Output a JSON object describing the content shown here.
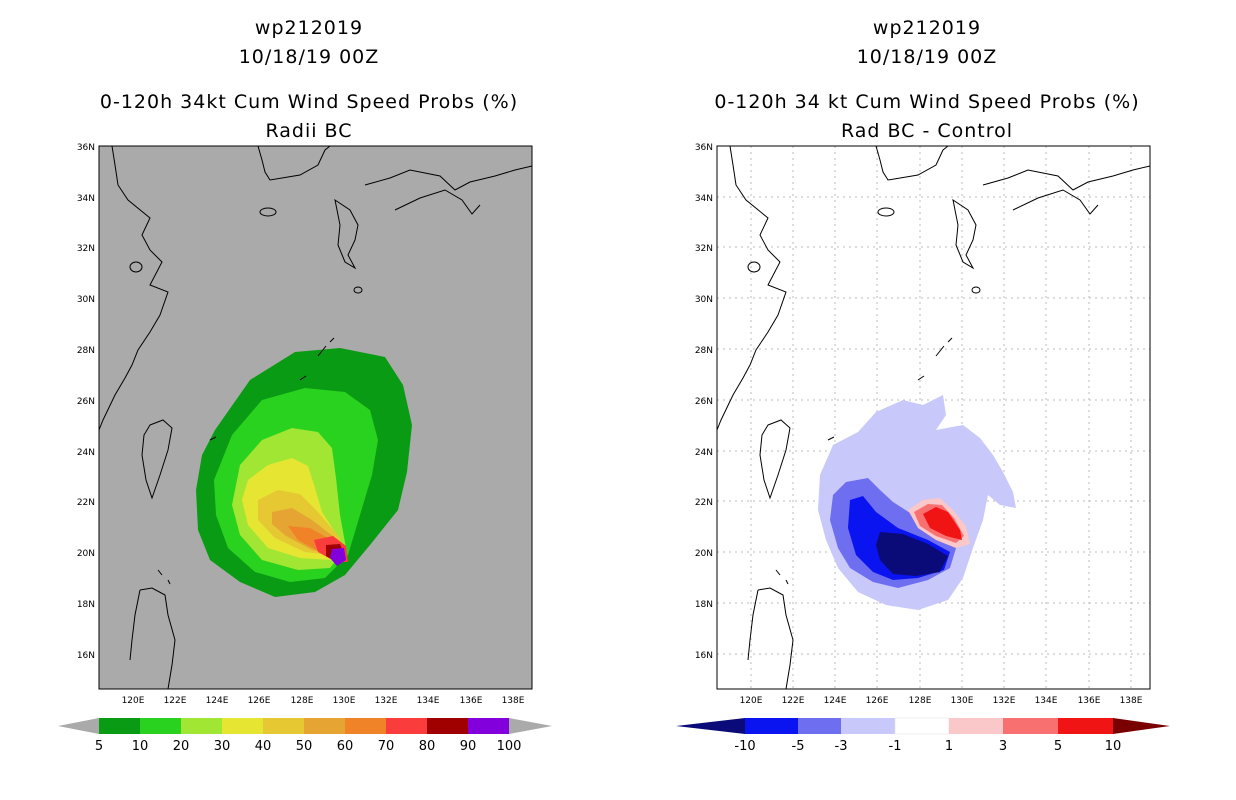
{
  "colors": {
    "gray_bg": "#aaaaaa",
    "p5": "#0a9b14",
    "p10": "#28d21e",
    "p20": "#a0e632",
    "p30": "#e6e632",
    "p40": "#e6c832",
    "p50": "#e6a532",
    "p60": "#f08228",
    "p70": "#fa3c3c",
    "p80": "#a00000",
    "p90": "#8200dc",
    "d_lt10": "#0a0a78",
    "d_m10": "#0a14f0",
    "d_m5": "#6e6ef0",
    "d_m3": "#c8c8fa",
    "d_m1": "#ffffff",
    "d_p1": "#fac8c8",
    "d_p3": "#f87070",
    "d_p5": "#f01414",
    "d_gt10": "#780000"
  },
  "left": {
    "title1": "wp212019",
    "title2": "10/18/19 00Z",
    "title3": "0-120h 34kt Cum Wind Speed Probs (%)",
    "title4": "Radii BC",
    "colorbar": [
      "5",
      "10",
      "20",
      "30",
      "40",
      "50",
      "60",
      "70",
      "80",
      "90",
      "100"
    ]
  },
  "right": {
    "title1": "wp212019",
    "title2": "10/18/19 00Z",
    "title3": "0-120h 34 kt Cum Wind Speed Probs (%)",
    "title4": "Rad BC - Control",
    "colorbar": [
      "-10",
      "-5",
      "-3",
      "-1",
      "1",
      "3",
      "5",
      "10"
    ]
  },
  "axes": {
    "lat_labels": [
      "36N",
      "34N",
      "32N",
      "30N",
      "28N",
      "26N",
      "24N",
      "22N",
      "20N",
      "18N",
      "16N"
    ],
    "lon_labels": [
      "120E",
      "122E",
      "124E",
      "126E",
      "128E",
      "130E",
      "132E",
      "134E",
      "136E",
      "138E"
    ]
  }
}
